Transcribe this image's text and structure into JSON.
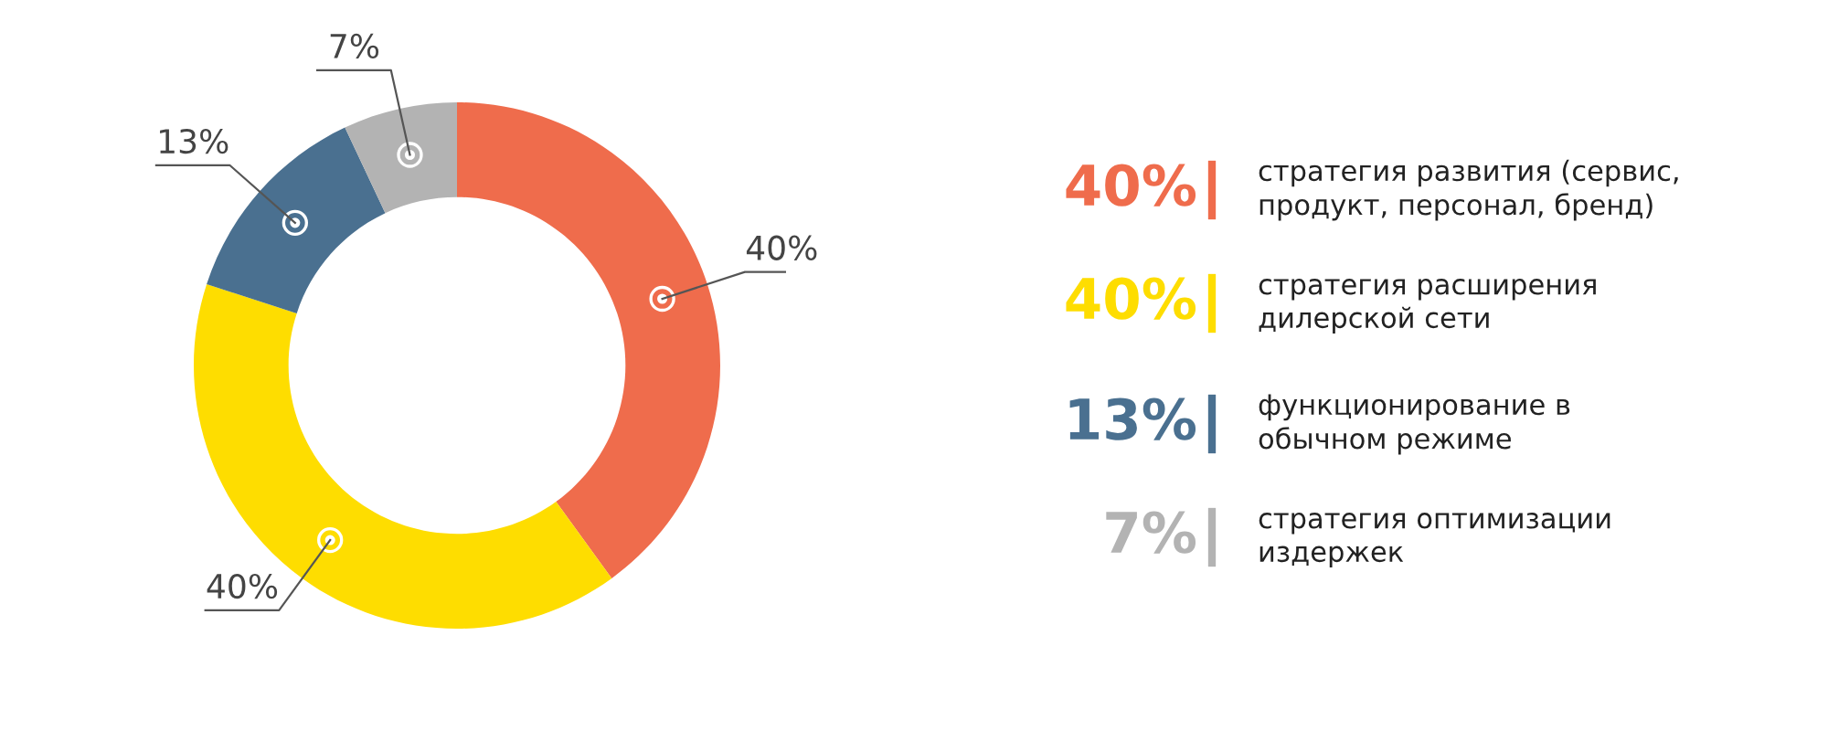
{
  "chart_data": {
    "type": "donut",
    "categories": [
      "стратегия развития (сервис,\nпродукт, персонал, бренд)",
      "стратегия расширения\nдилерской сети",
      "функционирование в\nобычном режиме",
      "стратегия оптимизации\nиздержек"
    ],
    "values": [
      40,
      40,
      13,
      7
    ],
    "colors": [
      "#ef6c4c",
      "#fedd00",
      "#4a7090",
      "#b3b3b3"
    ],
    "value_labels": [
      "40%",
      "40%",
      "13%",
      "7%"
    ],
    "legend": "right"
  }
}
